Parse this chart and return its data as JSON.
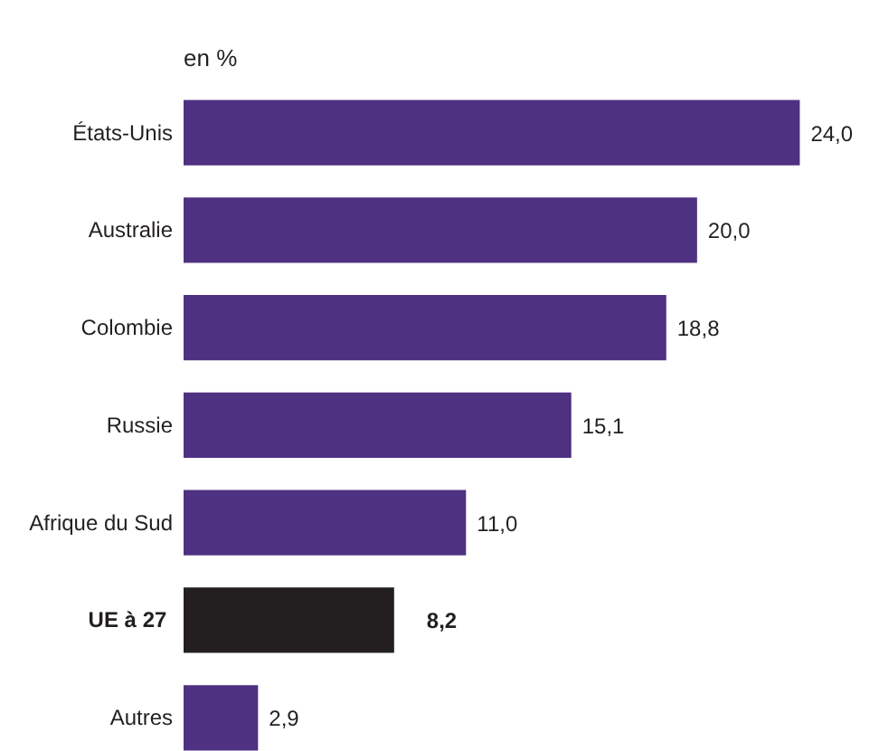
{
  "chart_data": {
    "type": "bar",
    "orientation": "horizontal",
    "subtitle": "en %",
    "categories": [
      "États-Unis",
      "Australie",
      "Colombie",
      "Russie",
      "Afrique du Sud",
      "UE  à 27",
      "Autres"
    ],
    "values": [
      24.0,
      20.0,
      18.8,
      15.1,
      11.0,
      8.2,
      2.9
    ],
    "color": "#4e3181",
    "colors": [
      "#4e3181",
      "#4e3181",
      "#4e3181",
      "#4e3181",
      "#4e3181",
      "#231f20",
      "#4e3181"
    ],
    "value_labels": [
      "24,0",
      "20,0",
      "18,8",
      "15,1",
      "11,0",
      "8,2",
      "2,9"
    ]
  }
}
